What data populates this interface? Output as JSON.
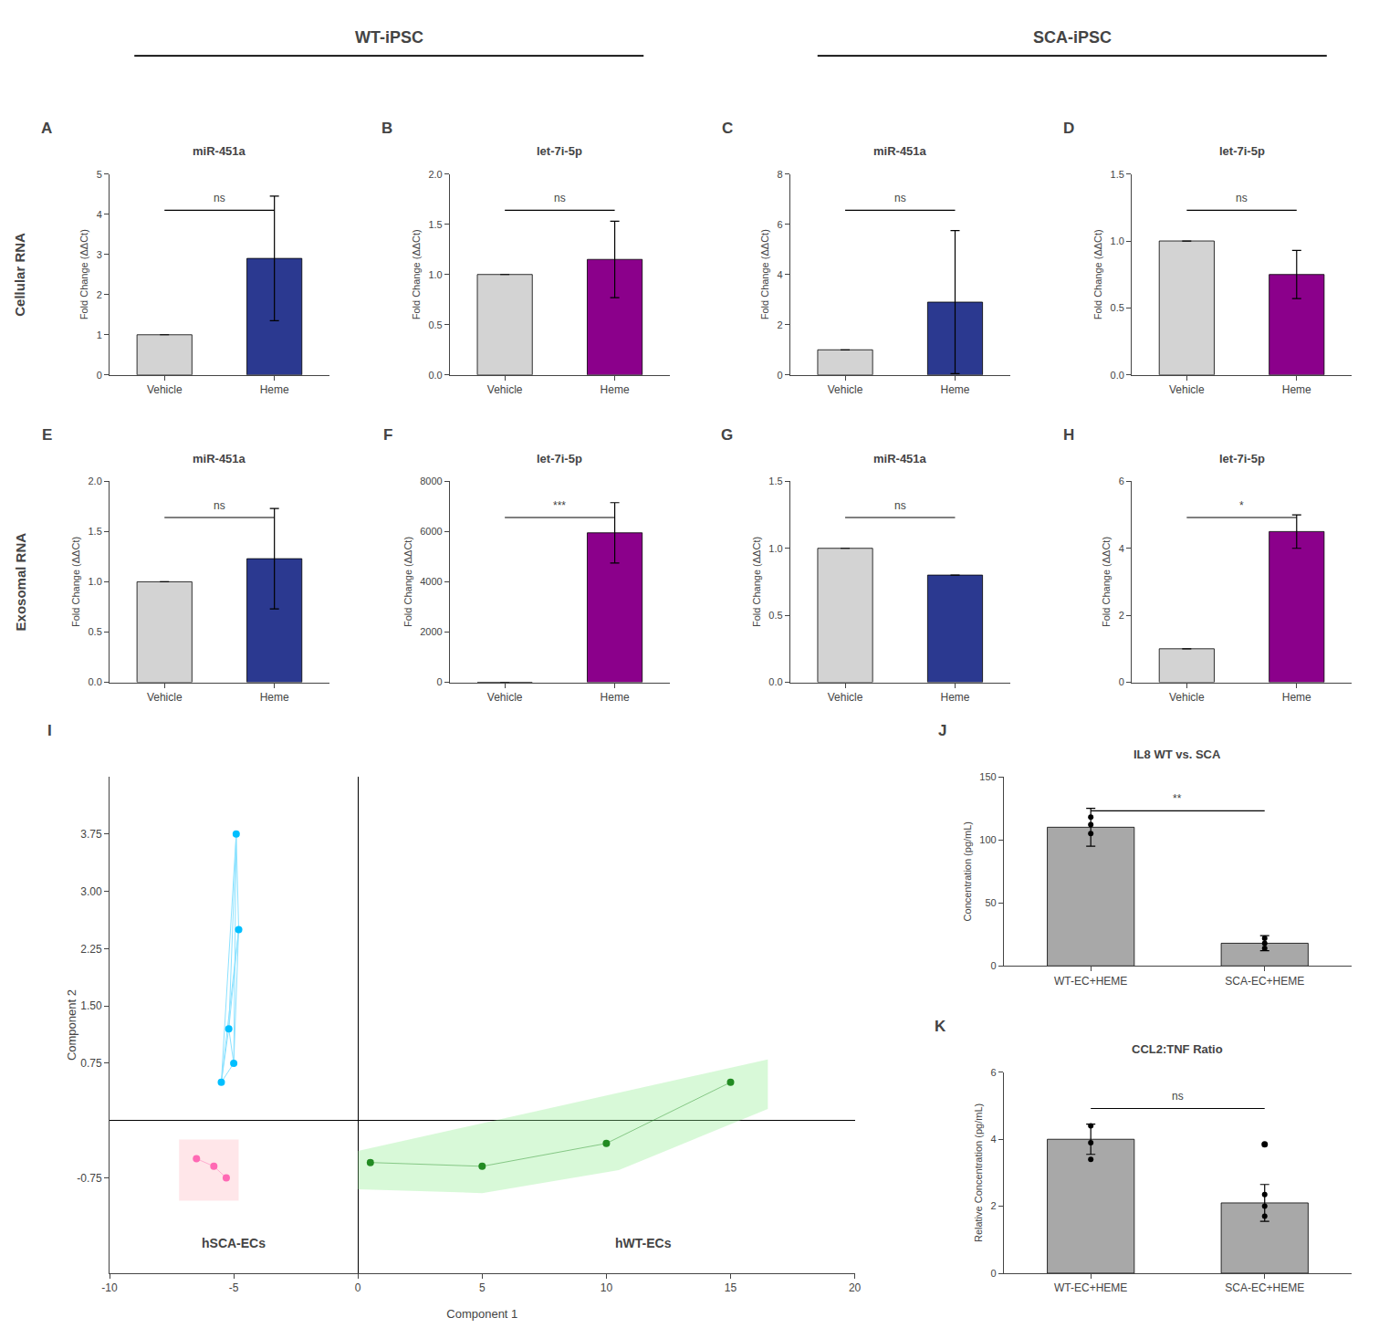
{
  "section_titles": [
    "WT-iPSC",
    "SCA-iPSC"
  ],
  "row_labels": [
    "Cellular RNA",
    "Exosomal RNA"
  ],
  "chart_data": [
    {
      "type": "bar",
      "panel_label": "A",
      "title": "miR-451a",
      "categories": [
        "Vehicle",
        "Heme"
      ],
      "values": [
        1.0,
        2.9
      ],
      "errors": [
        0.0,
        1.55
      ],
      "colors": [
        "#d3d3d3",
        "#2b3990"
      ],
      "ylim": [
        0,
        5
      ],
      "yticks": [
        0,
        1,
        2,
        3,
        4,
        5
      ],
      "ylabel": "Fold Change (ΔΔCt)",
      "significance": "ns",
      "grid": false
    },
    {
      "type": "bar",
      "panel_label": "B",
      "title": "let-7i-5p",
      "categories": [
        "Vehicle",
        "Heme"
      ],
      "values": [
        1.0,
        1.15
      ],
      "errors": [
        0.0,
        0.38
      ],
      "colors": [
        "#d3d3d3",
        "#8b008b"
      ],
      "ylim": [
        0,
        2.0
      ],
      "yticks": [
        {
          "value": 0,
          "label": "0.0"
        },
        0.5,
        {
          "value": 1,
          "label": "1.0"
        },
        1.5,
        {
          "value": 2,
          "label": "2.0"
        }
      ],
      "ylabel": "Fold Change (ΔΔCt)",
      "significance": "ns",
      "grid": false
    },
    {
      "type": "bar",
      "panel_label": "C",
      "title": "miR-451a",
      "categories": [
        "Vehicle",
        "Heme"
      ],
      "values": [
        1.0,
        2.9
      ],
      "errors": [
        0.0,
        2.85
      ],
      "colors": [
        "#d3d3d3",
        "#2b3990"
      ],
      "ylim": [
        0,
        8
      ],
      "yticks": [
        0,
        2,
        4,
        6,
        8
      ],
      "ylabel": "Fold Change (ΔΔCt)",
      "significance": "ns",
      "grid": false
    },
    {
      "type": "bar",
      "panel_label": "D",
      "title": "let-7i-5p",
      "categories": [
        "Vehicle",
        "Heme"
      ],
      "values": [
        1.0,
        0.75
      ],
      "errors": [
        0.0,
        0.18
      ],
      "colors": [
        "#d3d3d3",
        "#8b008b"
      ],
      "ylim": [
        0.0,
        1.5
      ],
      "yticks": [
        {
          "value": 0,
          "label": "0.0"
        },
        0.5,
        {
          "value": 1,
          "label": "1.0"
        },
        1.5
      ],
      "ylabel": "Fold Change (ΔΔCt)",
      "significance": "ns",
      "grid": false
    },
    {
      "type": "bar",
      "panel_label": "E",
      "title": "miR-451a",
      "categories": [
        "Vehicle",
        "Heme"
      ],
      "values": [
        1.0,
        1.23
      ],
      "errors": [
        0.0,
        0.5
      ],
      "colors": [
        "#d3d3d3",
        "#2b3990"
      ],
      "ylim": [
        0.0,
        2.0
      ],
      "yticks": [
        {
          "value": 0,
          "label": "0.0"
        },
        0.5,
        {
          "value": 1,
          "label": "1.0"
        },
        1.5,
        {
          "value": 2,
          "label": "2.0"
        }
      ],
      "ylabel": "Fold Change (ΔΔCt)",
      "significance": "ns",
      "grid": false
    },
    {
      "type": "bar",
      "panel_label": "F",
      "title": "let-7i-5p",
      "categories": [
        "Vehicle",
        "Heme"
      ],
      "values": [
        0.0,
        5950
      ],
      "errors": [
        0.0,
        1200
      ],
      "colors": [
        "#d3d3d3",
        "#8b008b"
      ],
      "ylim": [
        0,
        8000
      ],
      "yticks": [
        0,
        2000,
        4000,
        6000,
        8000
      ],
      "ylabel": "Fold Change (ΔΔCt)",
      "significance": "***",
      "grid": false
    },
    {
      "type": "bar",
      "panel_label": "G",
      "title": "miR-451a",
      "categories": [
        "Vehicle",
        "Heme"
      ],
      "values": [
        1.0,
        0.8
      ],
      "errors": [
        0.0,
        0.0
      ],
      "colors": [
        "#d3d3d3",
        "#2b3990"
      ],
      "ylim": [
        0.0,
        1.5
      ],
      "yticks": [
        {
          "value": 0,
          "label": "0.0"
        },
        0.5,
        {
          "value": 1,
          "label": "1.0"
        },
        1.5
      ],
      "ylabel": "Fold Change (ΔΔCt)",
      "significance": "ns",
      "grid": false
    },
    {
      "type": "bar",
      "panel_label": "H",
      "title": "let-7i-5p",
      "categories": [
        "Vehicle",
        "Heme"
      ],
      "values": [
        1.0,
        4.5
      ],
      "errors": [
        0.0,
        0.5
      ],
      "colors": [
        "#d3d3d3",
        "#8b008b"
      ],
      "ylim": [
        0,
        6
      ],
      "yticks": [
        0,
        2,
        4,
        6
      ],
      "ylabel": "Fold Change (ΔΔCt)",
      "significance": "*",
      "grid": false
    },
    {
      "type": "scatter",
      "panel_label": "I",
      "areas": [
        {
          "color": "#FFB6C1",
          "x": [
            -7.2,
            -4.8,
            -4.8,
            -7.2
          ],
          "y": [
            -1.05,
            -1.05,
            -0.25,
            -0.25
          ]
        },
        {
          "color": "#90EE90",
          "x": [
            0.0,
            5.0,
            10.5,
            16.5,
            16.5,
            0.0
          ],
          "y": [
            -0.9,
            -0.95,
            -0.65,
            0.15,
            0.8,
            -0.4
          ]
        }
      ],
      "series": [
        {
          "color": "#00BFFF",
          "marker": "circle",
          "line_style": "pairwise",
          "x": [
            -5.5,
            -5.2,
            -4.8,
            -5.0,
            -4.9
          ],
          "y": [
            0.5,
            1.2,
            2.5,
            0.75,
            3.75
          ]
        },
        {
          "color": "#FF69B4",
          "marker": "circle",
          "line_style": "solid",
          "x": [
            -6.5,
            -5.8,
            -5.3
          ],
          "y": [
            -0.5,
            -0.6,
            -0.75
          ]
        },
        {
          "color": "#228B22",
          "marker": "circle",
          "line_style": "solid",
          "x": [
            0.5,
            5.0,
            10.0,
            15.0
          ],
          "y": [
            -0.55,
            -0.6,
            -0.3,
            0.5
          ]
        }
      ],
      "annotations": [
        {
          "text": "hSCA-ECs",
          "x": -5.0,
          "y": -1.72
        },
        {
          "text": "hWT-ECs",
          "x": 11.5,
          "y": -1.72
        }
      ],
      "xlabel": "Component 1",
      "ylabel": "Component 2",
      "xlim": [
        -10,
        20
      ],
      "ylim": [
        -2.0,
        4.5
      ],
      "xticks": [
        -10,
        -5,
        0,
        5,
        10,
        15,
        20
      ],
      "yticks": [
        -0.75,
        0.75,
        {
          "value": 1.5,
          "label": "1.50"
        },
        2.25,
        {
          "value": 3,
          "label": "3.00"
        },
        3.75
      ],
      "grid": false
    },
    {
      "type": "bar",
      "panel_label": "J",
      "title": "IL8 WT vs. SCA",
      "categories": [
        "WT-EC+HEME",
        "SCA-EC+HEME"
      ],
      "values": [
        110,
        18
      ],
      "errors": [
        15,
        6
      ],
      "colors": [
        "#a8a8a8",
        "#a8a8a8"
      ],
      "ylim": [
        0,
        150
      ],
      "yticks": [
        0,
        50,
        100,
        150
      ],
      "ylabel": "Concentration (pg/mL)",
      "significance": "**",
      "dots": [
        [
          105,
          112,
          118
        ],
        [
          14,
          18,
          22
        ]
      ],
      "grid": false
    },
    {
      "type": "bar",
      "panel_label": "K",
      "title": "CCL2:TNF Ratio",
      "categories": [
        "WT-EC+HEME",
        "SCA-EC+HEME"
      ],
      "values": [
        4.0,
        2.1
      ],
      "errors": [
        0.45,
        0.55
      ],
      "colors": [
        "#a8a8a8",
        "#a8a8a8"
      ],
      "ylim": [
        0,
        6
      ],
      "yticks": [
        0,
        2,
        4,
        6
      ],
      "ylabel": "Relative Concentration (pg/mL)",
      "significance": "ns",
      "dots": [
        [
          3.4,
          3.9,
          4.4
        ],
        [
          1.7,
          2.0,
          2.35
        ]
      ],
      "outlier": {
        "category": "SCA-EC+HEME",
        "value": 3.85
      },
      "grid": false
    }
  ]
}
